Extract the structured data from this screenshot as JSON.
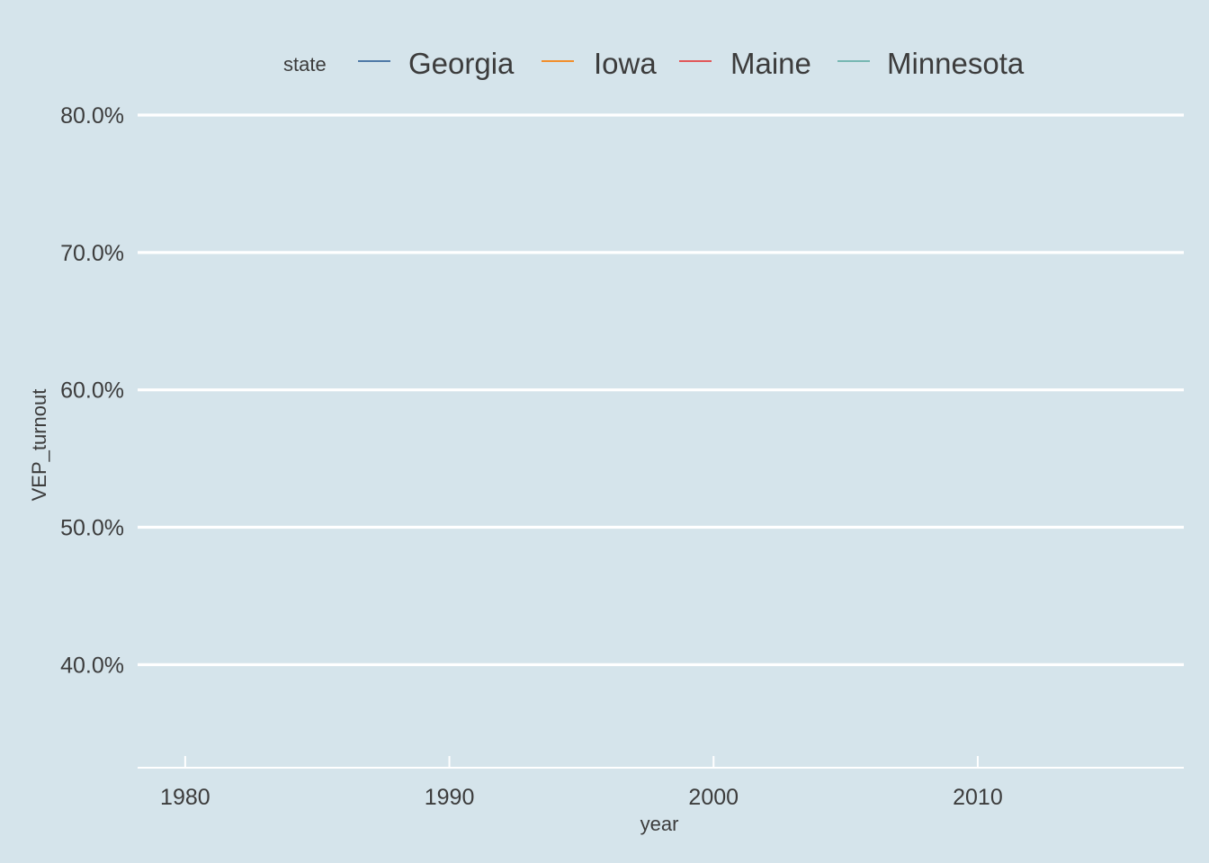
{
  "chart_data": {
    "type": "line",
    "xlabel": "year",
    "ylabel": "VEP_turnout",
    "x_ticks": [
      1980,
      1990,
      2000,
      2010
    ],
    "x_tick_labels": [
      "1980",
      "1990",
      "2000",
      "2010"
    ],
    "xlim": [
      1978.2,
      2017.8
    ],
    "y_ticks": [
      0.4,
      0.5,
      0.6,
      0.7,
      0.8
    ],
    "y_tick_labels": [
      "40.0%",
      "50.0%",
      "60.0%",
      "70.0%",
      "80.0%"
    ],
    "ylim": [
      0.325,
      0.8
    ],
    "grid": "horizontal-major",
    "legend": {
      "title": "state",
      "placement": "top"
    },
    "series": [
      {
        "name": "Georgia",
        "color": "#4e79a7",
        "points": []
      },
      {
        "name": "Iowa",
        "color": "#f28e2b",
        "points": []
      },
      {
        "name": "Maine",
        "color": "#e15759",
        "points": []
      },
      {
        "name": "Minnesota",
        "color": "#76b7b2",
        "points": []
      }
    ]
  },
  "colors": {
    "background": "#d5e4eb",
    "gridline": "#ffffff",
    "text": "#3c3c3c"
  }
}
